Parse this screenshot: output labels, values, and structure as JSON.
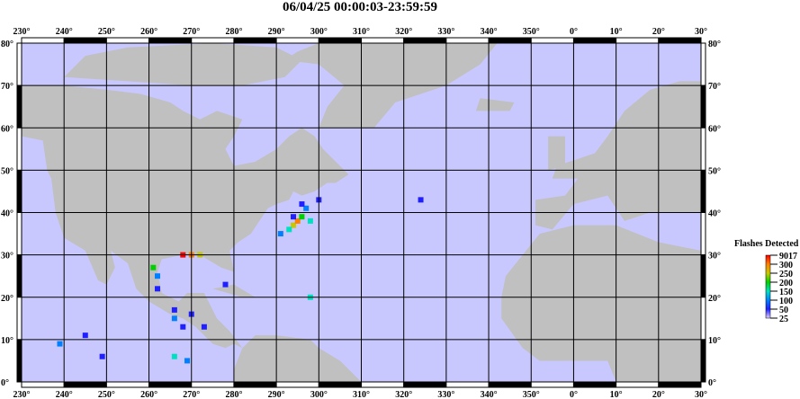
{
  "title": "06/04/25 00:00:03-23:59:59",
  "chart_data": {
    "type": "heatmap",
    "title": "06/04/25 00:00:03-23:59:59",
    "x_ticks": [
      "230°",
      "240°",
      "250°",
      "260°",
      "270°",
      "280°",
      "290°",
      "300°",
      "310°",
      "320°",
      "330°",
      "340°",
      "350°",
      "0°",
      "10°",
      "20°",
      "30°"
    ],
    "y_ticks": [
      "80°",
      "70°",
      "60°",
      "50°",
      "40°",
      "30°",
      "20°",
      "10°",
      "0°"
    ],
    "lon_range": [
      230,
      390
    ],
    "lat_range": [
      0,
      80
    ],
    "grid": true,
    "colors": {
      "ocean": "#c8c8ff",
      "land": "#c0c0c0"
    },
    "legend": {
      "title": "Flashes Detected",
      "labels": [
        "9017",
        "300",
        "250",
        "200",
        "150",
        "100",
        "50",
        "25"
      ],
      "colors": [
        "#ff0000",
        "#ff8000",
        "#c8c800",
        "#00d000",
        "#00e0c0",
        "#0080ff",
        "#2020ff",
        "#e0d0ff"
      ],
      "placement": "right"
    },
    "flashes": [
      {
        "lon": 294,
        "lat": 37,
        "count": 250
      },
      {
        "lon": 295,
        "lat": 38,
        "count": 300
      },
      {
        "lon": 296,
        "lat": 39,
        "count": 200
      },
      {
        "lon": 293,
        "lat": 36,
        "count": 150
      },
      {
        "lon": 297,
        "lat": 41,
        "count": 100
      },
      {
        "lon": 296,
        "lat": 42,
        "count": 50
      },
      {
        "lon": 291,
        "lat": 35,
        "count": 100
      },
      {
        "lon": 298,
        "lat": 38,
        "count": 150
      },
      {
        "lon": 294,
        "lat": 39,
        "count": 50
      },
      {
        "lon": 268,
        "lat": 30,
        "count": 9017
      },
      {
        "lon": 270,
        "lat": 30,
        "count": 300
      },
      {
        "lon": 272,
        "lat": 30,
        "count": 250
      },
      {
        "lon": 261,
        "lat": 27,
        "count": 200
      },
      {
        "lon": 262,
        "lat": 25,
        "count": 100
      },
      {
        "lon": 262,
        "lat": 22,
        "count": 50
      },
      {
        "lon": 266,
        "lat": 15,
        "count": 100
      },
      {
        "lon": 268,
        "lat": 13,
        "count": 50
      },
      {
        "lon": 270,
        "lat": 16,
        "count": 50
      },
      {
        "lon": 273,
        "lat": 13,
        "count": 50
      },
      {
        "lon": 239,
        "lat": 9,
        "count": 100
      },
      {
        "lon": 245,
        "lat": 11,
        "count": 50
      },
      {
        "lon": 266,
        "lat": 6,
        "count": 150
      },
      {
        "lon": 269,
        "lat": 5,
        "count": 100
      },
      {
        "lon": 278,
        "lat": 23,
        "count": 50
      },
      {
        "lon": 298,
        "lat": 20,
        "count": 150
      },
      {
        "lon": 300,
        "lat": 43,
        "count": 50
      },
      {
        "lon": 324,
        "lat": 43,
        "count": 50
      },
      {
        "lon": 249,
        "lat": 6,
        "count": 50
      },
      {
        "lon": 266,
        "lat": 17,
        "count": 50
      }
    ]
  }
}
